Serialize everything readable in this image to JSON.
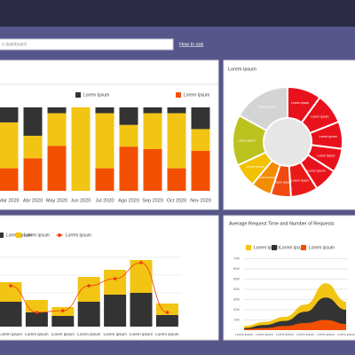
{
  "header": {
    "search_placeholder": "o dashboard",
    "help_link": "How to ask"
  },
  "charts": [
    {
      "type": "stacked-bar",
      "categories": [
        "Mar 2020",
        "Abr 2020",
        "May 2020",
        "Jun 2020",
        "Jul 2020",
        "Ago 2020",
        "Sep 2020",
        "Oct 2020",
        "Nov 2020"
      ],
      "series": [
        {
          "name": "Lorem Ipsum",
          "color": "#f25000",
          "values": [
            27,
            39,
            54,
            0,
            27,
            53,
            50,
            27,
            48
          ]
        },
        {
          "color": "#f2c414",
          "values": [
            55,
            27,
            39,
            100,
            66,
            26,
            43,
            66,
            26
          ]
        },
        {
          "name": "Lorem Ipsum",
          "color": "#333333",
          "values": [
            18,
            34,
            7,
            0,
            7,
            21,
            7,
            7,
            26
          ]
        }
      ],
      "ylim": [
        0,
        100
      ]
    },
    {
      "type": "donut",
      "title": "Lorem ipsum",
      "labels": [
        "Lorem ipsum",
        "Lorem ipsum",
        "Lorem ipsum",
        "Lorem ipsum",
        "Lorem ipsum",
        "Lorem ipsum",
        "Lorem ipsum",
        "Lorem ipsum",
        "Lorem ipsum",
        "Lorem ipsum",
        "Lorem ipsum"
      ],
      "values": [
        10,
        9,
        8,
        7,
        7,
        8,
        6,
        6,
        7,
        15,
        17
      ],
      "colors": [
        "#e8121c",
        "#e8121c",
        "#e8121c",
        "#e8121c",
        "#e8121c",
        "#ea1a18",
        "#f04a10",
        "#f28c00",
        "#f2c200",
        "#bcc21e",
        "#d4d4d4"
      ]
    },
    {
      "type": "combo",
      "categories": [
        "Lorem Ipsum",
        "Lorem Ipsum",
        "Lorem Ipsum",
        "Lorem Ipsum",
        "Lorem Ipsum",
        "Lorem Ipsum",
        "Lorem Ipsum"
      ],
      "series": [
        {
          "name": "Lorem ipsum",
          "color": "#333333",
          "kind": "bar",
          "values": [
            28,
            16,
            12,
            28,
            36,
            38,
            13
          ]
        },
        {
          "name": "Lorem ipsum",
          "color": "#f2c414",
          "kind": "bar",
          "values": [
            22,
            14,
            10,
            28,
            28,
            37,
            13
          ]
        },
        {
          "name": "Lorem ipsum",
          "color": "#f03a10",
          "kind": "line",
          "values": [
            46,
            16,
            18,
            46,
            54,
            72,
            16
          ]
        }
      ],
      "ylim": [
        0,
        80
      ]
    },
    {
      "type": "area",
      "title": "Average Request Time and Number of Requests",
      "categories": [
        "Lorem ipsum",
        "Lorem ipsum",
        "Lorem ipsum",
        "Lorem ipsum",
        "Lorem ipsum",
        "Lorem ipsum"
      ],
      "series": [
        {
          "name": "Lorem ipsum",
          "color": "#f2c414",
          "values": [
            4000,
            8000,
            13000,
            25000,
            46000,
            28000
          ]
        },
        {
          "name": "Lorem ipsum",
          "color": "#333333",
          "values": [
            2000,
            5000,
            9000,
            18000,
            32000,
            20000
          ]
        },
        {
          "name": "Lorem ipsum",
          "color": "#f25000",
          "values": [
            1000,
            2000,
            4000,
            7000,
            10000,
            6000
          ]
        }
      ],
      "ylim": [
        0,
        70000
      ],
      "yticks": [
        {
          "value": 10000,
          "label": "10K"
        },
        {
          "value": 20000,
          "label": "20K"
        },
        {
          "value": 30000,
          "label": "30K"
        },
        {
          "value": 40000,
          "label": "40K"
        },
        {
          "value": 50000,
          "label": "50K"
        },
        {
          "value": 60000,
          "label": "60K"
        },
        {
          "value": 70000,
          "label": "70K"
        }
      ]
    }
  ]
}
